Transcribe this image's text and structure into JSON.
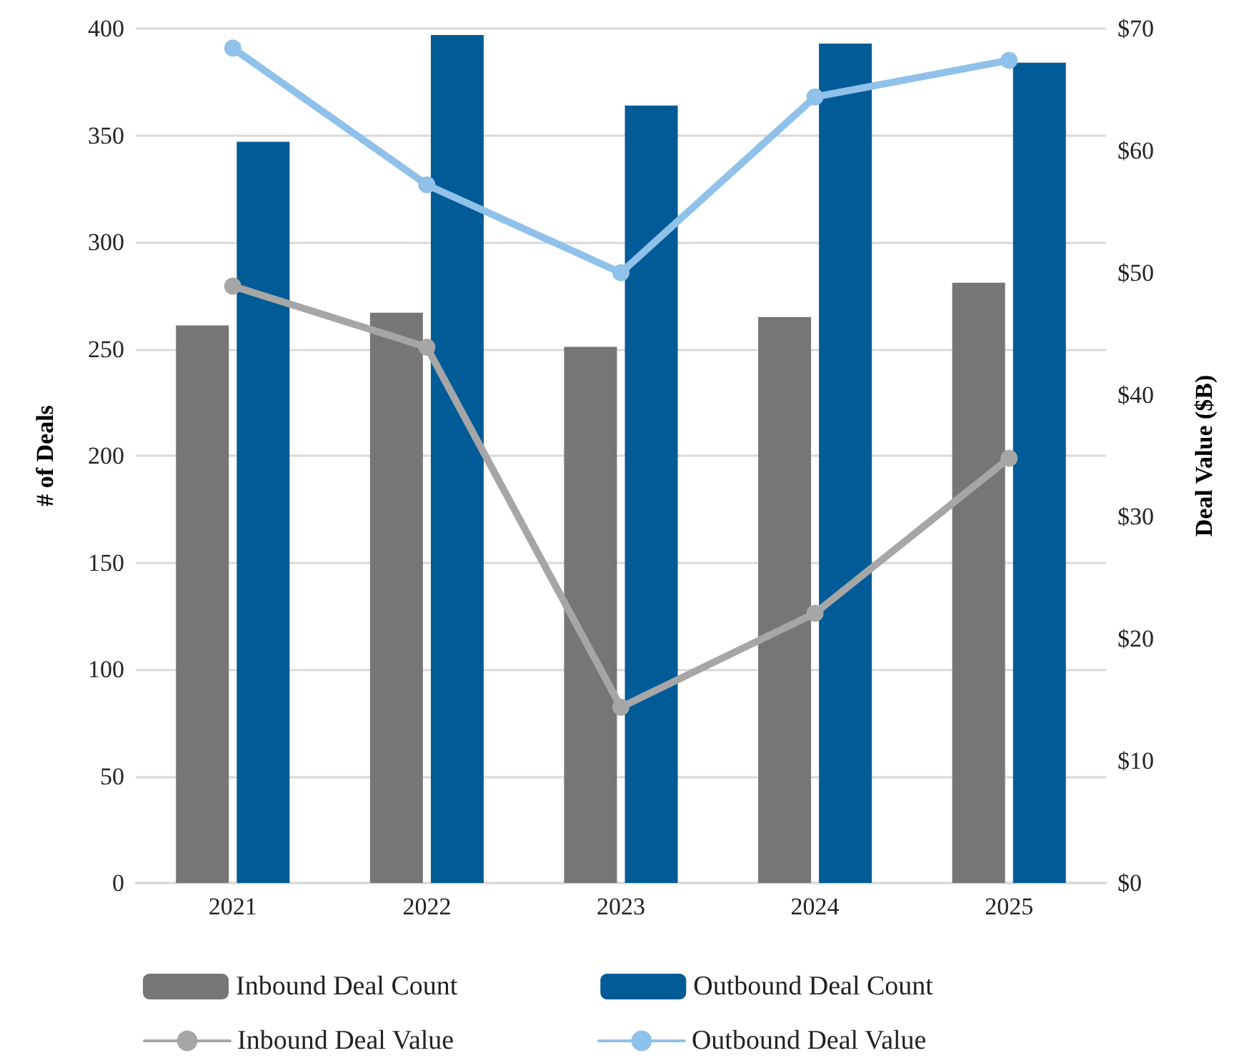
{
  "chart_data": {
    "type": "bar",
    "categories": [
      "2021",
      "2022",
      "2023",
      "2024",
      "2025"
    ],
    "ylabel": "# of Deals",
    "y2label": "Deal Value ($B)",
    "ylim": [
      0,
      400
    ],
    "yticks": [
      0,
      50,
      100,
      150,
      200,
      250,
      300,
      350,
      400
    ],
    "y2lim": [
      0,
      70
    ],
    "y2ticks": [
      {
        "value": 0,
        "label": "$0"
      },
      {
        "value": 10,
        "label": "$10"
      },
      {
        "value": 20,
        "label": "$20"
      },
      {
        "value": 30,
        "label": "$30"
      },
      {
        "value": 40,
        "label": "$40"
      },
      {
        "value": 50,
        "label": "$50"
      },
      {
        "value": 60,
        "label": "$60"
      },
      {
        "value": 70,
        "label": "$70"
      }
    ],
    "grid": "y",
    "legend": "bottom",
    "marker": "circle",
    "series": [
      {
        "name": "Inbound Deal Count",
        "color": "#767676",
        "values": [
          261,
          267,
          251,
          265,
          281
        ]
      },
      {
        "name": "Outbound Deal Count",
        "color": "#005b96",
        "values": [
          347,
          397,
          364,
          393,
          384
        ]
      },
      {
        "name": "Inbound Deal Value",
        "type": "line",
        "axis": "y2",
        "color": "#a6a6a6",
        "values": [
          48.9,
          43.9,
          14.4,
          22.1,
          34.8
        ]
      },
      {
        "name": "Outbound Deal Value",
        "type": "line",
        "axis": "y2",
        "color": "#8fc1ea",
        "values": [
          68.4,
          57.2,
          50.0,
          64.4,
          67.4
        ]
      }
    ]
  }
}
